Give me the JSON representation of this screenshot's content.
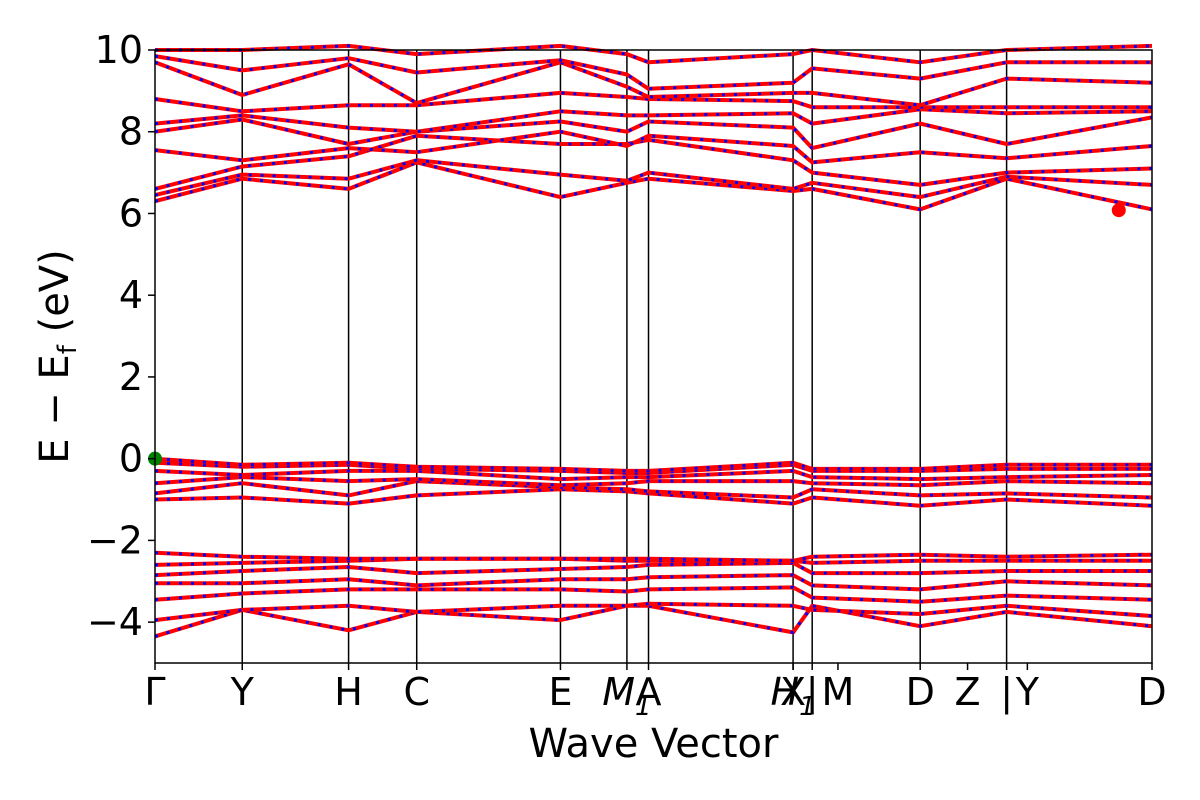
{
  "chart_data": {
    "type": "line",
    "title": "",
    "xlabel": "Wave Vector",
    "ylabel": "E − E",
    "ylabel_sub": "f",
    "ylabel_unit": " (eV)",
    "ylim": [
      -5,
      10
    ],
    "yticks": [
      -4,
      -2,
      0,
      2,
      4,
      6,
      8,
      10
    ],
    "ytick_labels": [
      "−4",
      "−2",
      "0",
      "2",
      "4",
      "6",
      "8",
      "10"
    ],
    "xlim": [
      0,
      12.0
    ],
    "kpoints": [
      {
        "label": "Γ",
        "x": 0.0
      },
      {
        "label": "Y",
        "x": 1.05
      },
      {
        "label": "H",
        "x": 2.33
      },
      {
        "label": "C",
        "x": 3.15
      },
      {
        "label": "E",
        "x": 4.88
      },
      {
        "label": "M",
        "sub": "1",
        "x": 5.68,
        "italic": true
      },
      {
        "label": "A",
        "x": 5.94
      },
      {
        "label": "H",
        "sub": "1",
        "x": 7.68,
        "italic": true
      },
      {
        "label": "X",
        "x": 7.68
      },
      {
        "label": "|",
        "x": 7.91
      },
      {
        "label": "M",
        "x": 8.22
      },
      {
        "label": "D",
        "x": 9.21
      },
      {
        "label": "Z",
        "x": 9.78
      },
      {
        "label": "|",
        "x": 10.25
      },
      {
        "label": "Y",
        "x": 10.5
      },
      {
        "label": "D",
        "x": 12.0
      }
    ],
    "vlines": [
      1.05,
      2.33,
      3.15,
      4.88,
      5.68,
      5.94,
      7.68,
      7.91,
      9.21,
      10.25
    ],
    "grid": false,
    "legend": "none",
    "colors": {
      "spin_up": "#ff0000",
      "spin_down": "#0000ff",
      "cbm": "#ff0000",
      "vbm": "#008000"
    },
    "series": [
      {
        "x": [
          0,
          1.05,
          2.33,
          3.15,
          4.88,
          5.68,
          5.94,
          7.68,
          7.91,
          9.21,
          10.25,
          12.0
        ],
        "values": [
          -4.35,
          -3.7,
          -4.2,
          -3.75,
          -3.95,
          -3.6,
          -3.6,
          -4.25,
          -3.6,
          -4.1,
          -3.75,
          -4.1
        ]
      },
      {
        "x": [
          0,
          1.05,
          2.33,
          3.15,
          4.88,
          5.68,
          5.94,
          7.68,
          7.91,
          9.21,
          10.25,
          12.0
        ],
        "values": [
          -3.95,
          -3.7,
          -3.6,
          -3.75,
          -3.6,
          -3.6,
          -3.55,
          -3.6,
          -3.7,
          -3.8,
          -3.6,
          -3.85
        ]
      },
      {
        "x": [
          0,
          1.05,
          2.33,
          3.15,
          4.88,
          5.68,
          5.94,
          7.68,
          7.91,
          9.21,
          10.25,
          12.0
        ],
        "values": [
          -3.45,
          -3.3,
          -3.2,
          -3.2,
          -3.2,
          -3.25,
          -3.2,
          -3.15,
          -3.4,
          -3.5,
          -3.35,
          -3.45
        ]
      },
      {
        "x": [
          0,
          1.05,
          2.33,
          3.15,
          4.88,
          5.68,
          5.94,
          7.68,
          7.91,
          9.21,
          10.25,
          12.0
        ],
        "values": [
          -3.05,
          -3.05,
          -2.95,
          -3.1,
          -2.95,
          -2.95,
          -2.9,
          -2.85,
          -3.1,
          -3.2,
          -3.0,
          -3.1
        ]
      },
      {
        "x": [
          0,
          1.05,
          2.33,
          3.15,
          4.88,
          5.68,
          5.94,
          7.68,
          7.91,
          9.21,
          10.25,
          12.0
        ],
        "values": [
          -2.85,
          -2.75,
          -2.65,
          -2.8,
          -2.7,
          -2.65,
          -2.6,
          -2.55,
          -2.8,
          -2.8,
          -2.75,
          -2.75
        ]
      },
      {
        "x": [
          0,
          1.05,
          2.33,
          3.15,
          4.88,
          5.68,
          5.94,
          7.68,
          7.91,
          9.21,
          10.25,
          12.0
        ],
        "values": [
          -2.6,
          -2.55,
          -2.5,
          -2.45,
          -2.45,
          -2.5,
          -2.5,
          -2.5,
          -2.55,
          -2.5,
          -2.5,
          -2.5
        ]
      },
      {
        "x": [
          0,
          1.05,
          2.33,
          3.15,
          4.88,
          5.68,
          5.94,
          7.68,
          7.91,
          9.21,
          10.25,
          12.0
        ],
        "values": [
          -2.3,
          -2.4,
          -2.45,
          -2.45,
          -2.45,
          -2.45,
          -2.45,
          -2.5,
          -2.4,
          -2.35,
          -2.4,
          -2.35
        ]
      },
      {
        "x": [
          0,
          1.05,
          2.33,
          3.15,
          4.88,
          5.68,
          5.94,
          7.68,
          7.91,
          9.21,
          10.25,
          12.0
        ],
        "values": [
          -1.0,
          -0.95,
          -1.1,
          -0.9,
          -0.75,
          -0.8,
          -0.85,
          -1.1,
          -0.95,
          -1.15,
          -1.0,
          -1.15
        ]
      },
      {
        "x": [
          0,
          1.05,
          2.33,
          3.15,
          4.88,
          5.68,
          5.94,
          7.68,
          7.91,
          9.21,
          10.25,
          12.0
        ],
        "values": [
          -0.85,
          -0.6,
          -0.9,
          -0.55,
          -0.7,
          -0.75,
          -0.8,
          -0.95,
          -0.75,
          -0.9,
          -0.85,
          -0.95
        ]
      },
      {
        "x": [
          0,
          1.05,
          2.33,
          3.15,
          4.88,
          5.68,
          5.94,
          7.68,
          7.91,
          9.21,
          10.25,
          12.0
        ],
        "values": [
          -0.6,
          -0.45,
          -0.55,
          -0.5,
          -0.65,
          -0.6,
          -0.55,
          -0.55,
          -0.6,
          -0.65,
          -0.55,
          -0.6
        ]
      },
      {
        "x": [
          0,
          1.05,
          2.33,
          3.15,
          4.88,
          5.68,
          5.94,
          7.68,
          7.91,
          9.21,
          10.25,
          12.0
        ],
        "values": [
          -0.3,
          -0.4,
          -0.3,
          -0.3,
          -0.5,
          -0.45,
          -0.45,
          -0.3,
          -0.45,
          -0.5,
          -0.45,
          -0.4
        ]
      },
      {
        "x": [
          0,
          1.05,
          2.33,
          3.15,
          4.88,
          5.68,
          5.94,
          7.68,
          7.91,
          9.21,
          10.25,
          12.0
        ],
        "values": [
          -0.1,
          -0.2,
          -0.15,
          -0.25,
          -0.3,
          -0.35,
          -0.35,
          -0.15,
          -0.3,
          -0.3,
          -0.25,
          -0.25
        ]
      },
      {
        "x": [
          0,
          1.05,
          2.33,
          3.15,
          4.88,
          5.68,
          5.94,
          7.68,
          7.91,
          9.21,
          10.25,
          12.0
        ],
        "values": [
          0.0,
          -0.15,
          -0.1,
          -0.2,
          -0.25,
          -0.3,
          -0.3,
          -0.1,
          -0.25,
          -0.25,
          -0.15,
          -0.15
        ]
      },
      {
        "x": [
          0,
          1.05,
          2.33,
          3.15,
          4.88,
          5.68,
          5.94,
          7.68,
          7.91,
          9.21,
          10.25,
          12.0
        ],
        "values": [
          6.3,
          6.85,
          6.6,
          7.25,
          6.4,
          6.75,
          6.85,
          6.55,
          6.6,
          6.1,
          6.85,
          6.1
        ]
      },
      {
        "x": [
          0,
          1.05,
          2.33,
          3.15,
          4.88,
          5.68,
          5.94,
          7.68,
          7.91,
          9.21,
          10.25,
          12.0
        ],
        "values": [
          6.45,
          6.95,
          6.85,
          7.3,
          6.95,
          6.8,
          7.0,
          6.6,
          6.75,
          6.4,
          6.9,
          6.7
        ]
      },
      {
        "x": [
          0,
          1.05,
          2.33,
          3.15,
          4.88,
          5.68,
          5.94,
          7.68,
          7.91,
          9.21,
          10.25,
          12.0
        ],
        "values": [
          6.6,
          7.15,
          7.4,
          7.9,
          7.7,
          7.7,
          7.8,
          7.3,
          7.0,
          6.7,
          7.0,
          7.1
        ]
      },
      {
        "x": [
          0,
          1.05,
          2.33,
          3.15,
          4.88,
          5.68,
          5.94,
          7.68,
          7.91,
          9.21,
          10.25,
          12.0
        ],
        "values": [
          7.55,
          7.3,
          7.6,
          7.5,
          8.0,
          7.65,
          7.9,
          7.65,
          7.25,
          7.5,
          7.35,
          7.65
        ]
      },
      {
        "x": [
          0,
          1.05,
          2.33,
          3.15,
          4.88,
          5.68,
          5.94,
          7.68,
          7.91,
          9.21,
          10.25,
          12.0
        ],
        "values": [
          8.0,
          8.3,
          7.7,
          8.0,
          8.25,
          8.0,
          8.25,
          8.1,
          7.6,
          8.2,
          7.7,
          8.35
        ]
      },
      {
        "x": [
          0,
          1.05,
          2.33,
          3.15,
          4.88,
          5.68,
          5.94,
          7.68,
          7.91,
          9.21,
          10.25,
          12.0
        ],
        "values": [
          8.2,
          8.4,
          8.1,
          8.0,
          8.5,
          8.4,
          8.4,
          8.45,
          8.2,
          8.55,
          8.45,
          8.5
        ]
      },
      {
        "x": [
          0,
          1.05,
          2.33,
          3.15,
          4.88,
          5.68,
          5.94,
          7.68,
          7.91,
          9.21,
          10.25,
          12.0
        ],
        "values": [
          8.8,
          8.5,
          8.65,
          8.65,
          8.95,
          8.85,
          8.8,
          8.75,
          8.6,
          8.6,
          8.6,
          8.6
        ]
      },
      {
        "x": [
          0,
          1.05,
          2.33,
          3.15,
          4.88,
          5.68,
          5.94,
          7.68,
          7.91,
          9.21,
          10.25,
          12.0
        ],
        "values": [
          9.7,
          8.9,
          9.65,
          8.7,
          9.7,
          9.1,
          8.85,
          8.95,
          8.95,
          8.65,
          9.3,
          9.2
        ]
      },
      {
        "x": [
          0,
          1.05,
          2.33,
          3.15,
          4.88,
          5.68,
          5.94,
          7.68,
          7.91,
          9.21,
          10.25,
          12.0
        ],
        "values": [
          9.85,
          9.5,
          9.8,
          9.45,
          9.75,
          9.4,
          9.05,
          9.2,
          9.55,
          9.3,
          9.7,
          9.7
        ]
      },
      {
        "x": [
          0,
          1.05,
          2.33,
          3.15,
          4.88,
          5.68,
          5.94,
          7.68,
          7.91,
          9.21,
          10.25,
          12.0
        ],
        "values": [
          10.0,
          10.0,
          10.1,
          9.9,
          10.1,
          9.9,
          9.7,
          9.9,
          10.0,
          9.7,
          10.0,
          10.1
        ]
      }
    ],
    "markers": [
      {
        "name": "vbm",
        "x": 0.0,
        "y": 0.0
      },
      {
        "name": "cbm",
        "x": 11.6,
        "y": 6.08
      }
    ]
  }
}
